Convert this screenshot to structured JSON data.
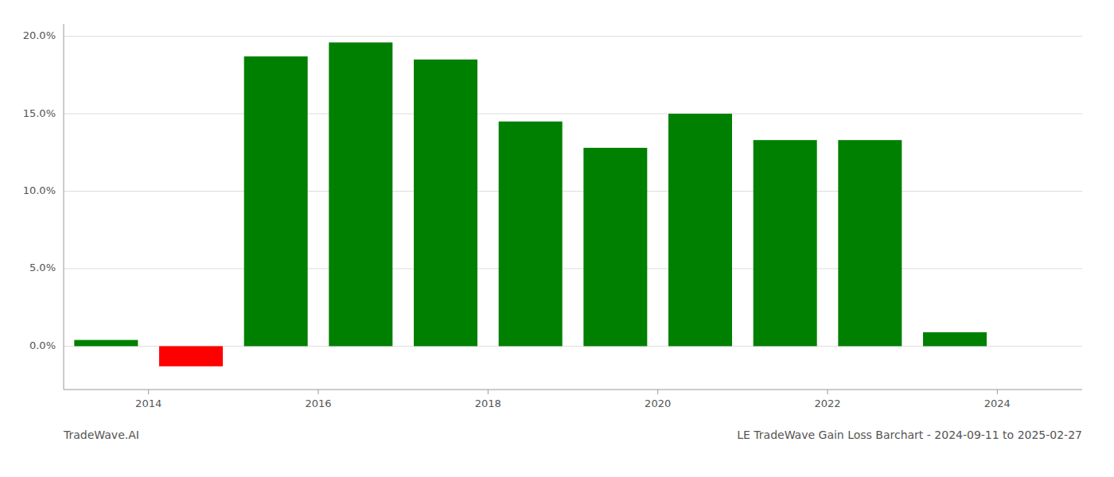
{
  "chart_data": {
    "type": "bar",
    "title": "LE TradeWave Gain Loss Barchart - 2024-09-11 to 2025-02-27",
    "annotations": [
      "TradeWave.AI"
    ],
    "x": [
      2013.5,
      2014.5,
      2015.5,
      2016.5,
      2017.5,
      2018.5,
      2019.5,
      2020.5,
      2021.5,
      2022.5,
      2023.5
    ],
    "values": [
      0.004,
      -0.013,
      0.187,
      0.196,
      0.185,
      0.145,
      0.128,
      0.15,
      0.133,
      0.133,
      0.009
    ],
    "colors": [
      "#008000",
      "#ff0000",
      "#008000",
      "#008000",
      "#008000",
      "#008000",
      "#008000",
      "#008000",
      "#008000",
      "#008000",
      "#008000"
    ],
    "xlim": [
      2013.0,
      2025.0
    ],
    "xticks": [
      2014,
      2016,
      2018,
      2020,
      2022,
      2024
    ],
    "ylim": [
      -0.028,
      0.208
    ],
    "yticks": [
      {
        "value": 0.0,
        "label": "0.0%"
      },
      {
        "value": 0.05,
        "label": "5.0%"
      },
      {
        "value": 0.1,
        "label": "10.0%"
      },
      {
        "value": 0.15,
        "label": "15.0%"
      },
      {
        "value": 0.2,
        "label": "20.0%"
      }
    ],
    "grid": true
  }
}
